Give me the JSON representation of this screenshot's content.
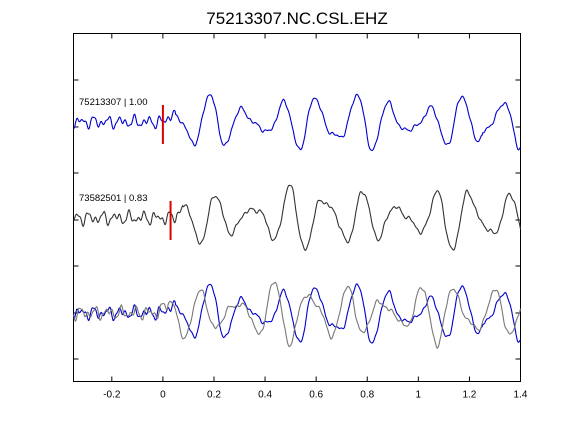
{
  "chart_data": {
    "type": "line",
    "title": "75213307.NC.CSL.EHZ",
    "xlabel": "",
    "ylabel": "",
    "xlim": [
      -0.35,
      1.4
    ],
    "x_ticks": [
      -0.2,
      0,
      0.2,
      0.4,
      0.6,
      0.8,
      1.0,
      1.2,
      1.4
    ],
    "x_tick_labels": [
      "-0.2",
      "0",
      "0.2",
      "0.4",
      "0.6",
      "0.8",
      "1",
      "1.2",
      "1.4"
    ],
    "grid": false,
    "legend": "none",
    "traces": [
      {
        "label": "75213307 | 1.00",
        "color": "#0000cc",
        "pick_time": 0.0,
        "pick_color": "#dd0000",
        "panel": "top"
      },
      {
        "label": "73582501 | 0.83",
        "color": "#333333",
        "pick_time": 0.03,
        "pick_color": "#dd0000",
        "panel": "middle"
      },
      {
        "label": "",
        "color": "#0000cc",
        "panel": "bottom",
        "overlay_of": "75213307 | 1.00"
      },
      {
        "label": "",
        "color": "#777777",
        "panel": "bottom",
        "overlay_of": "73582501 | 0.83"
      }
    ]
  }
}
